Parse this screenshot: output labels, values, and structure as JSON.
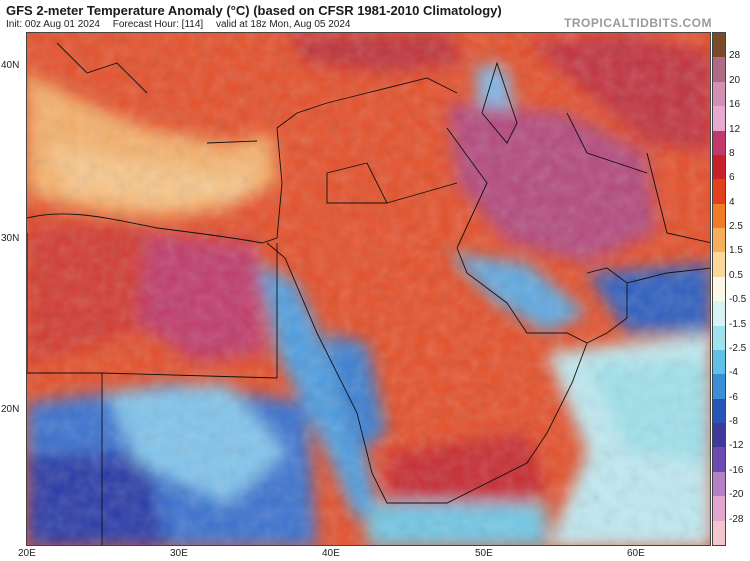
{
  "header": {
    "title": "GFS 2-meter Temperature Anomaly (°C) (based on CFSR 1981-2010 Climatology)",
    "init": "Init: 00z Aug 01 2024",
    "forecast_hour": "Forecast Hour: [114]",
    "valid": "valid at 18z Mon, Aug 05 2024",
    "brand": "TROPICALTIDBITS.COM"
  },
  "axes": {
    "lat_labels": [
      "40N",
      "30N",
      "20N"
    ],
    "lon_labels": [
      "20E",
      "30E",
      "40E",
      "50E",
      "60E"
    ]
  },
  "colorbar": {
    "labels": [
      "28",
      "20",
      "16",
      "12",
      "8",
      "6",
      "4",
      "2.5",
      "1.5",
      "0.5",
      "-0.5",
      "-1.5",
      "-2.5",
      "-4",
      "-6",
      "-8",
      "-12",
      "-16",
      "-20",
      "-28"
    ],
    "colors": [
      "#7b4a2a",
      "#b06a86",
      "#d48fb5",
      "#e6a9cf",
      "#c03a6a",
      "#c8202a",
      "#e0401a",
      "#f07c28",
      "#f7ae5a",
      "#fbd79a",
      "#fbf6e6",
      "#d8f2f6",
      "#9fe1ec",
      "#5ec2e6",
      "#3a8fd8",
      "#2456b8",
      "#3e3a9c",
      "#6a4cb0",
      "#b57fc6",
      "#e3a7cf",
      "#f2c6cf"
    ]
  },
  "map": {
    "warm_color": "#e04a20",
    "hot_color": "#c02a3a",
    "extreme_color": "#b2488c",
    "mild_color": "#f5a24a",
    "cool_color": "#7fd3ea",
    "cold_color": "#2f6fd0",
    "sea_light": "#bfe9f2"
  }
}
